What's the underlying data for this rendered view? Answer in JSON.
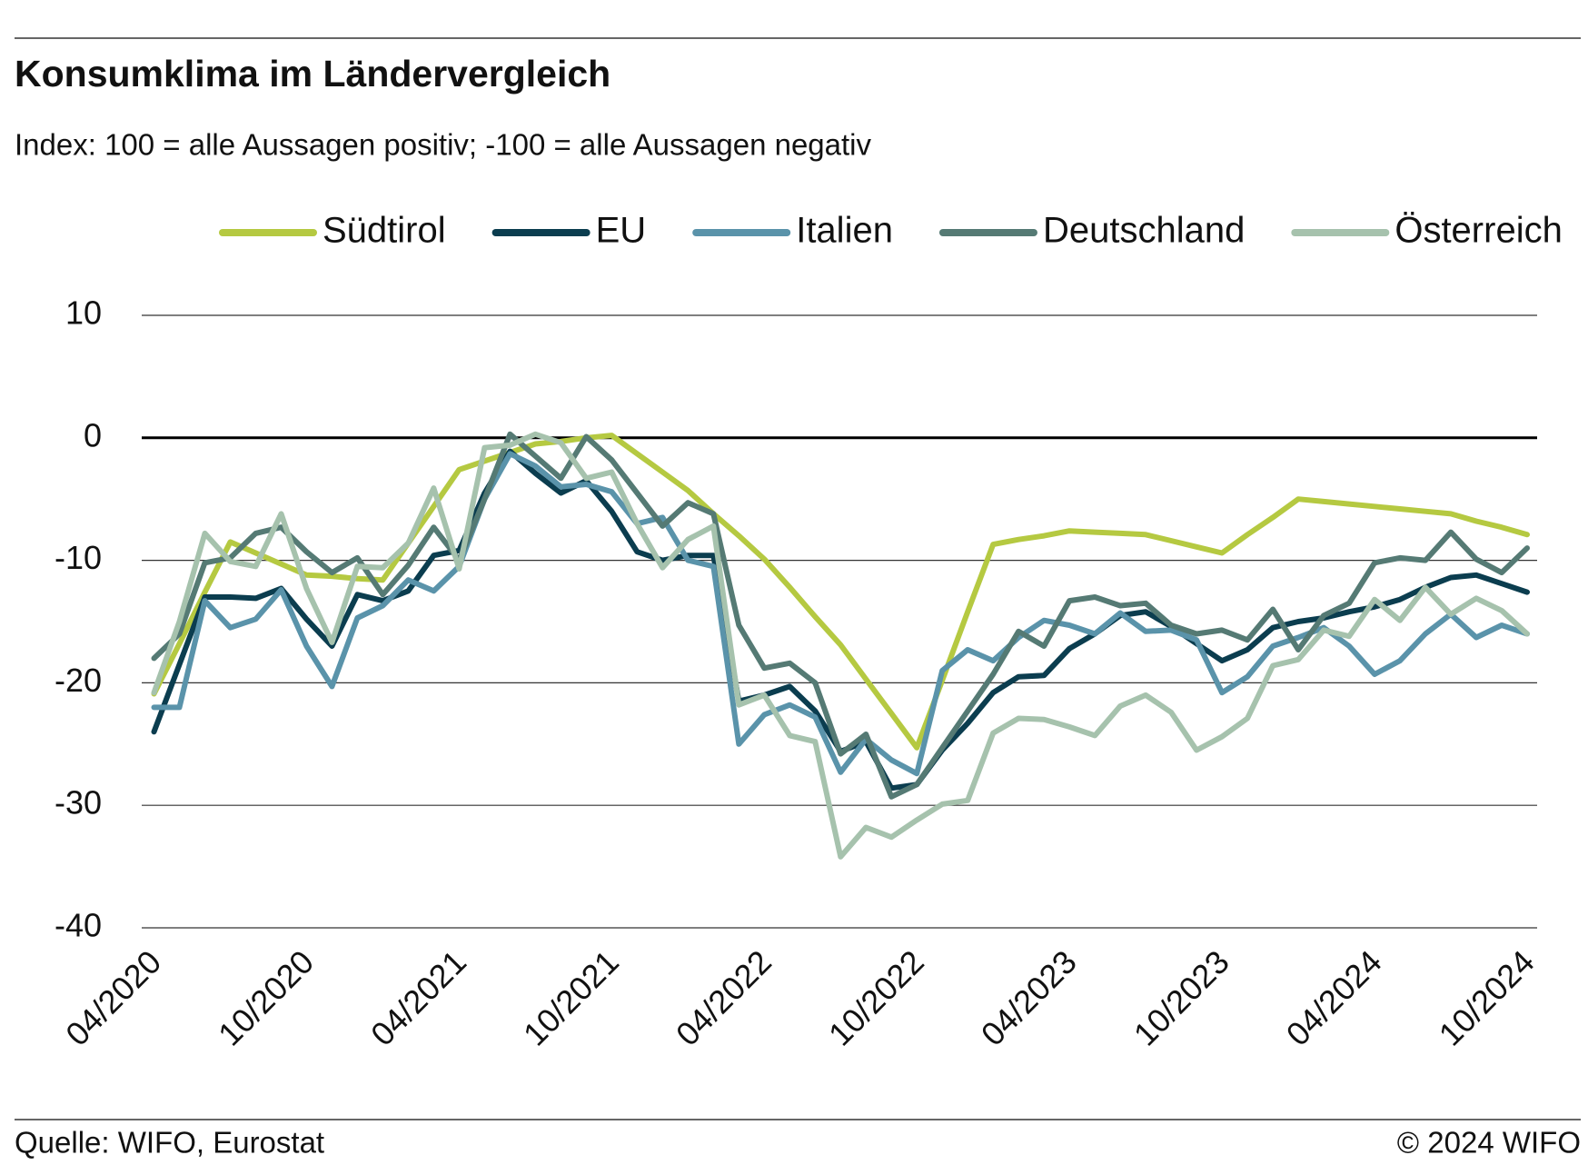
{
  "chart_data": {
    "type": "line",
    "title": "Konsumklima im Ländervergleich",
    "subtitle": "Index: 100 = alle Aussagen positiv; -100 =  alle Aussagen negativ",
    "source": "Quelle: WIFO, Eurostat",
    "copyright": "© 2024 WIFO",
    "categories": [
      "04/2020",
      null,
      null,
      null,
      null,
      null,
      "10/2020",
      null,
      null,
      null,
      null,
      null,
      "04/2021",
      null,
      null,
      null,
      null,
      null,
      "10/2021",
      null,
      null,
      null,
      null,
      null,
      "04/2022",
      null,
      null,
      null,
      null,
      null,
      "10/2022",
      null,
      null,
      null,
      null,
      null,
      "04/2023",
      null,
      null,
      null,
      null,
      null,
      "10/2023",
      null,
      null,
      null,
      null,
      null,
      "04/2024",
      null,
      null,
      null,
      null,
      null,
      "10/2024"
    ],
    "series": [
      {
        "name": "Südtirol",
        "color": "#b5c941",
        "values": [
          -20.9,
          -16.8,
          -12.6,
          -8.5,
          -9.4,
          -10.3,
          -11.2,
          -11.3,
          -11.5,
          -11.6,
          -8.6,
          -5.6,
          -2.6,
          -1.9,
          -1.2,
          -0.5,
          -0.3,
          0,
          0.2,
          -1.3,
          -2.8,
          -4.3,
          -6.2,
          -8.0,
          -9.9,
          -12.2,
          -14.6,
          -16.9,
          -19.7,
          -22.5,
          -25.3,
          -19.8,
          -14.2,
          -8.7,
          -8.3,
          -8.0,
          -7.6,
          -7.7,
          -7.8,
          -7.9,
          -8.4,
          -8.9,
          -9.4,
          -7.9,
          -6.5,
          -5.0,
          -5.2,
          -5.4,
          -5.6,
          -5.8,
          -6.0,
          -6.2,
          -6.8,
          -7.3,
          -7.9
        ]
      },
      {
        "name": "EU",
        "color": "#0b3d4f",
        "values": [
          -24,
          -18.5,
          -13,
          -13,
          -13.1,
          -12.3,
          -14.8,
          -17,
          -12.8,
          -13.3,
          -12.5,
          -9.6,
          -9.2,
          -4.5,
          -1.1,
          -2.9,
          -4.5,
          -3.5,
          -6,
          -9.3,
          -10,
          -9.6,
          -9.6,
          -21.5,
          -21,
          -20.3,
          -22.3,
          -25.6,
          -24.8,
          -28.6,
          -28.3,
          -25.5,
          -23.3,
          -20.8,
          -19.5,
          -19.4,
          -17.2,
          -16,
          -14.5,
          -14.2,
          -15.4,
          -16.8,
          -18.2,
          -17.3,
          -15.5,
          -15,
          -14.7,
          -14.2,
          -13.8,
          -13.2,
          -12.2,
          -11.4,
          -11.2,
          -11.9,
          -12.6
        ]
      },
      {
        "name": "Italien",
        "color": "#5a93aa",
        "values": [
          -22,
          -22,
          -13.3,
          -15.5,
          -14.8,
          -12.4,
          -17,
          -20.3,
          -14.7,
          -13.7,
          -11.6,
          -12.5,
          -10.5,
          -5,
          -1.3,
          -2.3,
          -4,
          -3.8,
          -4.4,
          -7,
          -6.5,
          -10,
          -10.5,
          -25,
          -22.6,
          -21.8,
          -22.8,
          -27.3,
          -24.6,
          -26.3,
          -27.4,
          -19,
          -17.3,
          -18.2,
          -16.3,
          -14.9,
          -15.3,
          -16,
          -14.3,
          -15.8,
          -15.7,
          -16.5,
          -20.8,
          -19.5,
          -17,
          -16.3,
          -15.5,
          -17,
          -19.3,
          -18.2,
          -16,
          -14.4,
          -16.3,
          -15.3,
          -16
        ]
      },
      {
        "name": "Deutschland",
        "color": "#557a74",
        "values": [
          -18,
          -16,
          -10.2,
          -9.8,
          -7.8,
          -7.3,
          -9.3,
          -11,
          -9.8,
          -12.8,
          -10.4,
          -7.3,
          -10,
          -5,
          0.3,
          -1.5,
          -3.3,
          0.1,
          -1.8,
          -4.5,
          -7.2,
          -5.3,
          -6.2,
          -15.3,
          -18.8,
          -18.4,
          -20,
          -25.8,
          -24.2,
          -29.3,
          -28.3,
          -25.3,
          -22.3,
          -19.3,
          -15.8,
          -17,
          -13.3,
          -13,
          -13.7,
          -13.5,
          -15.3,
          -16,
          -15.7,
          -16.5,
          -14,
          -17.3,
          -14.5,
          -13.5,
          -10.2,
          -9.8,
          -10,
          -7.7,
          -9.9,
          -11,
          -9
        ]
      },
      {
        "name": "Österreich",
        "color": "#a6c2ad",
        "values": [
          -20.8,
          -15,
          -7.8,
          -10.1,
          -10.5,
          -6.2,
          -12.3,
          -16.7,
          -10.5,
          -10.6,
          -8.6,
          -4.1,
          -10.7,
          -0.8,
          -0.6,
          0.3,
          -0.4,
          -3.3,
          -2.8,
          -7,
          -10.6,
          -8.3,
          -7.2,
          -21.8,
          -21,
          -24.3,
          -24.8,
          -34.2,
          -31.8,
          -32.6,
          -31.2,
          -29.9,
          -29.6,
          -24.1,
          -22.9,
          -23,
          -23.6,
          -24.3,
          -21.9,
          -21,
          -22.4,
          -25.5,
          -24.4,
          -22.9,
          -18.6,
          -18.1,
          -15.7,
          -16.2,
          -13.2,
          -14.9,
          -12.2,
          -14.4,
          -13.1,
          -14.1,
          -16
        ]
      }
    ],
    "ylim": [
      -40,
      10
    ],
    "yticks": [
      10,
      0,
      -10,
      -20,
      -30,
      -40
    ],
    "grid": true,
    "legend": "top"
  }
}
